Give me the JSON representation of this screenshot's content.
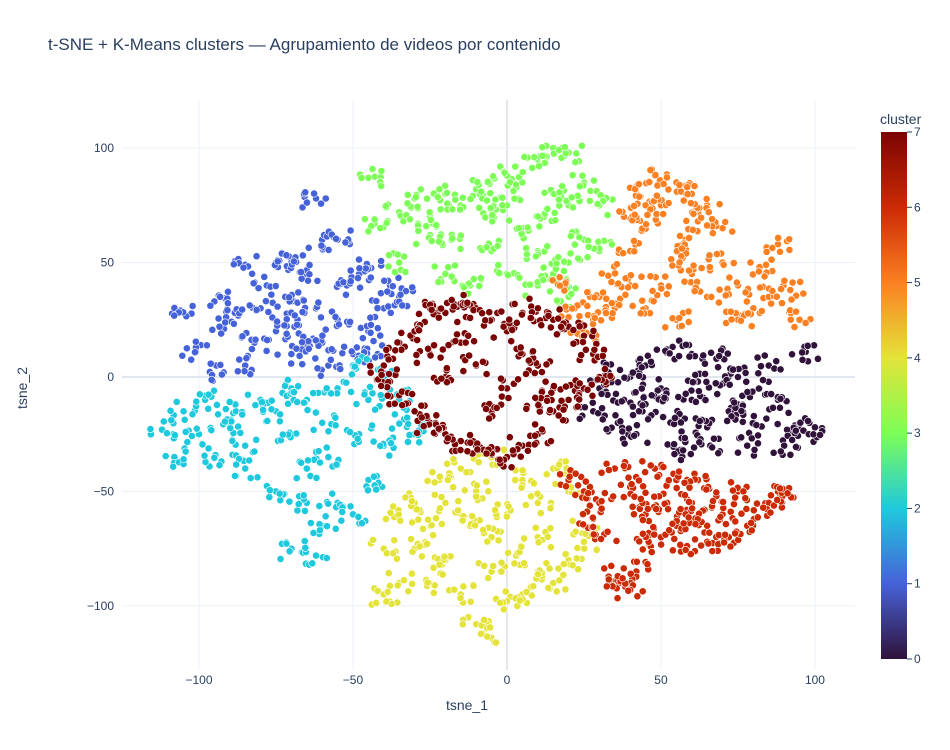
{
  "chart_data": {
    "type": "scatter",
    "title": "t-SNE + K-Means clusters — Agrupamiento de videos por contenido",
    "xlabel": "tsne_1",
    "ylabel": "tsne_2",
    "xlim": [
      -125,
      113
    ],
    "ylim": [
      -128,
      121
    ],
    "xticks": [
      -100,
      -50,
      0,
      50,
      100
    ],
    "yticks": [
      -100,
      -50,
      0,
      50,
      100
    ],
    "xtick_labels": [
      "−100",
      "−50",
      "0",
      "50",
      "100"
    ],
    "ytick_labels": [
      "−100",
      "−50",
      "0",
      "50",
      "100"
    ],
    "grid": true,
    "colorbar": {
      "title": "cluster",
      "range": [
        0,
        7
      ],
      "ticks": [
        0,
        1,
        2,
        3,
        4,
        5,
        6,
        7
      ],
      "colorscale": [
        "#30123b",
        "#4662d8",
        "#1fc9dd",
        "#7dfe56",
        "#e4e339",
        "#fb8022",
        "#cb2a04",
        "#7a0403"
      ]
    },
    "series": [
      {
        "cluster": 0,
        "color": "#30123b",
        "points": [
          [
            30,
            -5
          ],
          [
            38,
            -10
          ],
          [
            44,
            -15
          ],
          [
            50,
            -5
          ],
          [
            55,
            -18
          ],
          [
            60,
            -10
          ],
          [
            65,
            -22
          ],
          [
            70,
            -3
          ],
          [
            75,
            -12
          ],
          [
            80,
            -20
          ],
          [
            85,
            5
          ],
          [
            45,
            5
          ],
          [
            52,
            12
          ],
          [
            60,
            10
          ],
          [
            68,
            8
          ],
          [
            75,
            0
          ],
          [
            82,
            -5
          ],
          [
            88,
            -10
          ],
          [
            92,
            -25
          ],
          [
            95,
            -20
          ],
          [
            98,
            -25
          ],
          [
            90,
            -30
          ],
          [
            36,
            -20
          ],
          [
            28,
            -15
          ],
          [
            42,
            -25
          ],
          [
            58,
            -28
          ],
          [
            62,
            -2
          ],
          [
            40,
            0
          ],
          [
            47,
            -8
          ],
          [
            72,
            -15
          ],
          [
            97,
            11
          ],
          [
            33,
            2
          ],
          [
            56,
            -32
          ],
          [
            66,
            -30
          ],
          [
            78,
            -30
          ]
        ]
      },
      {
        "cluster": 1,
        "color": "#4662d8",
        "points": [
          [
            -106,
            29
          ],
          [
            -101,
            11
          ],
          [
            -95,
            33
          ],
          [
            -93,
            22
          ],
          [
            -85,
            49
          ],
          [
            -80,
            30
          ],
          [
            -75,
            20
          ],
          [
            -72,
            35
          ],
          [
            -70,
            10
          ],
          [
            -68,
            25
          ],
          [
            -65,
            45
          ],
          [
            -62,
            30
          ],
          [
            -60,
            15
          ],
          [
            -60,
            60
          ],
          [
            -62,
            78
          ],
          [
            -55,
            25
          ],
          [
            -52,
            40
          ],
          [
            -48,
            45
          ],
          [
            -45,
            20
          ],
          [
            -42,
            10
          ],
          [
            -40,
            30
          ],
          [
            -35,
            35
          ],
          [
            -75,
            50
          ],
          [
            -82,
            15
          ],
          [
            -88,
            28
          ],
          [
            -78,
            40
          ],
          [
            -70,
            50
          ],
          [
            -65,
            15
          ],
          [
            -58,
            5
          ],
          [
            -50,
            10
          ],
          [
            -92,
            2
          ],
          [
            -85,
            5
          ],
          [
            -55,
            60
          ],
          [
            -38,
            40
          ],
          [
            -45,
            48
          ]
        ]
      },
      {
        "cluster": 2,
        "color": "#1fc9dd",
        "points": [
          [
            -112,
            -23
          ],
          [
            -105,
            -15
          ],
          [
            -100,
            -25
          ],
          [
            -95,
            -35
          ],
          [
            -90,
            -20
          ],
          [
            -98,
            -10
          ],
          [
            -108,
            -35
          ],
          [
            -85,
            -30
          ],
          [
            -75,
            -15
          ],
          [
            -70,
            -25
          ],
          [
            -65,
            -40
          ],
          [
            -60,
            -20
          ],
          [
            -55,
            -55
          ],
          [
            -60,
            -65
          ],
          [
            -50,
            -60
          ],
          [
            -45,
            -45
          ],
          [
            -40,
            -30
          ],
          [
            -35,
            -20
          ],
          [
            -45,
            -10
          ],
          [
            -55,
            -5
          ],
          [
            -50,
            5
          ],
          [
            -40,
            0
          ],
          [
            -70,
            -5
          ],
          [
            -75,
            -50
          ],
          [
            -65,
            -55
          ],
          [
            -70,
            -75
          ],
          [
            -62,
            -78
          ],
          [
            -80,
            -10
          ],
          [
            -85,
            -40
          ],
          [
            -35,
            -10
          ],
          [
            -30,
            -25
          ],
          [
            -48,
            -25
          ],
          [
            -58,
            -35
          ],
          [
            -88,
            -15
          ],
          [
            -65,
            -10
          ]
        ]
      },
      {
        "cluster": 3,
        "color": "#7dfe56",
        "points": [
          [
            -45,
            87
          ],
          [
            -43,
            67
          ],
          [
            -35,
            50
          ],
          [
            -30,
            78
          ],
          [
            -25,
            70
          ],
          [
            -20,
            80
          ],
          [
            -15,
            75
          ],
          [
            -10,
            82
          ],
          [
            -5,
            70
          ],
          [
            -18,
            60
          ],
          [
            -12,
            40
          ],
          [
            0,
            75
          ],
          [
            5,
            65
          ],
          [
            10,
            55
          ],
          [
            15,
            45
          ],
          [
            20,
            50
          ],
          [
            25,
            60
          ],
          [
            20,
            75
          ],
          [
            15,
            80
          ],
          [
            10,
            95
          ],
          [
            15,
            100
          ],
          [
            20,
            98
          ],
          [
            25,
            85
          ],
          [
            30,
            75
          ],
          [
            5,
            85
          ],
          [
            0,
            88
          ],
          [
            -5,
            55
          ],
          [
            10,
            40
          ],
          [
            20,
            35
          ],
          [
            -25,
            62
          ],
          [
            -20,
            45
          ],
          [
            30,
            55
          ],
          [
            -35,
            72
          ],
          [
            0,
            45
          ],
          [
            12,
            70
          ],
          [
            -8,
            78
          ]
        ]
      },
      {
        "cluster": 4,
        "color": "#e4e339",
        "points": [
          [
            -40,
            -95
          ],
          [
            -35,
            -90
          ],
          [
            -30,
            -75
          ],
          [
            -25,
            -65
          ],
          [
            -20,
            -55
          ],
          [
            -15,
            -40
          ],
          [
            -10,
            -50
          ],
          [
            -5,
            -70
          ],
          [
            0,
            -60
          ],
          [
            5,
            -45
          ],
          [
            10,
            -55
          ],
          [
            15,
            -40
          ],
          [
            20,
            -50
          ],
          [
            25,
            -65
          ],
          [
            20,
            -80
          ],
          [
            15,
            -90
          ],
          [
            10,
            -85
          ],
          [
            5,
            -95
          ],
          [
            0,
            -98
          ],
          [
            -5,
            -85
          ],
          [
            -15,
            -95
          ],
          [
            -20,
            -80
          ],
          [
            -25,
            -90
          ],
          [
            -10,
            -108
          ],
          [
            -8,
            -112
          ],
          [
            -30,
            -55
          ],
          [
            -35,
            -60
          ],
          [
            -40,
            -75
          ],
          [
            -5,
            -35
          ],
          [
            10,
            -70
          ],
          [
            25,
            -72
          ],
          [
            -12,
            -65
          ],
          [
            -22,
            -45
          ],
          [
            3,
            -78
          ]
        ]
      },
      {
        "cluster": 5,
        "color": "#fb8022",
        "points": [
          [
            18,
            40
          ],
          [
            22,
            30
          ],
          [
            25,
            20
          ],
          [
            30,
            35
          ],
          [
            35,
            45
          ],
          [
            40,
            55
          ],
          [
            45,
            65
          ],
          [
            50,
            75
          ],
          [
            55,
            85
          ],
          [
            48,
            88
          ],
          [
            42,
            80
          ],
          [
            38,
            70
          ],
          [
            58,
            60
          ],
          [
            60,
            45
          ],
          [
            65,
            35
          ],
          [
            70,
            50
          ],
          [
            75,
            40
          ],
          [
            80,
            30
          ],
          [
            85,
            35
          ],
          [
            88,
            58
          ],
          [
            92,
            38
          ],
          [
            95,
            25
          ],
          [
            70,
            65
          ],
          [
            65,
            75
          ],
          [
            60,
            80
          ],
          [
            35,
            30
          ],
          [
            45,
            30
          ],
          [
            55,
            25
          ],
          [
            75,
            25
          ],
          [
            50,
            40
          ],
          [
            40,
            40
          ],
          [
            28,
            25
          ],
          [
            62,
            68
          ],
          [
            82,
            48
          ],
          [
            45,
            75
          ],
          [
            57,
            52
          ]
        ]
      },
      {
        "cluster": 6,
        "color": "#cb2a04",
        "points": [
          [
            20,
            -45
          ],
          [
            25,
            -50
          ],
          [
            30,
            -55
          ],
          [
            28,
            -62
          ],
          [
            35,
            -40
          ],
          [
            40,
            -48
          ],
          [
            45,
            -60
          ],
          [
            50,
            -70
          ],
          [
            55,
            -65
          ],
          [
            60,
            -55
          ],
          [
            65,
            -72
          ],
          [
            70,
            -60
          ],
          [
            75,
            -50
          ],
          [
            80,
            -58
          ],
          [
            85,
            -55
          ],
          [
            88,
            -50
          ],
          [
            92,
            -52
          ],
          [
            42,
            -85
          ],
          [
            38,
            -90
          ],
          [
            40,
            -93
          ],
          [
            52,
            -55
          ],
          [
            58,
            -75
          ],
          [
            65,
            -65
          ],
          [
            72,
            -70
          ],
          [
            46,
            -72
          ],
          [
            48,
            -40
          ],
          [
            62,
            -45
          ],
          [
            68,
            -52
          ],
          [
            32,
            -68
          ],
          [
            55,
            -45
          ],
          [
            78,
            -65
          ],
          [
            36,
            -87
          ],
          [
            44,
            -55
          ],
          [
            58,
            -60
          ]
        ]
      },
      {
        "cluster": 7,
        "color": "#7a0403",
        "points": [
          [
            -40,
            5
          ],
          [
            -35,
            15
          ],
          [
            -30,
            20
          ],
          [
            -25,
            30
          ],
          [
            -20,
            28
          ],
          [
            -15,
            32
          ],
          [
            -10,
            30
          ],
          [
            -5,
            25
          ],
          [
            0,
            20
          ],
          [
            5,
            28
          ],
          [
            10,
            30
          ],
          [
            15,
            25
          ],
          [
            20,
            22
          ],
          [
            25,
            18
          ],
          [
            28,
            10
          ],
          [
            30,
            0
          ],
          [
            25,
            -5
          ],
          [
            20,
            -10
          ],
          [
            15,
            -15
          ],
          [
            10,
            -25
          ],
          [
            5,
            -30
          ],
          [
            0,
            -35
          ],
          [
            -5,
            -32
          ],
          [
            -10,
            -30
          ],
          [
            -15,
            -28
          ],
          [
            -20,
            -25
          ],
          [
            -25,
            -20
          ],
          [
            -30,
            -15
          ],
          [
            -35,
            -8
          ],
          [
            -38,
            -2
          ],
          [
            -20,
            0
          ],
          [
            -10,
            5
          ],
          [
            0,
            -5
          ],
          [
            10,
            5
          ],
          [
            15,
            -5
          ],
          [
            5,
            10
          ],
          [
            -15,
            15
          ],
          [
            -25,
            10
          ],
          [
            -5,
            -15
          ],
          [
            10,
            -10
          ]
        ]
      }
    ]
  }
}
